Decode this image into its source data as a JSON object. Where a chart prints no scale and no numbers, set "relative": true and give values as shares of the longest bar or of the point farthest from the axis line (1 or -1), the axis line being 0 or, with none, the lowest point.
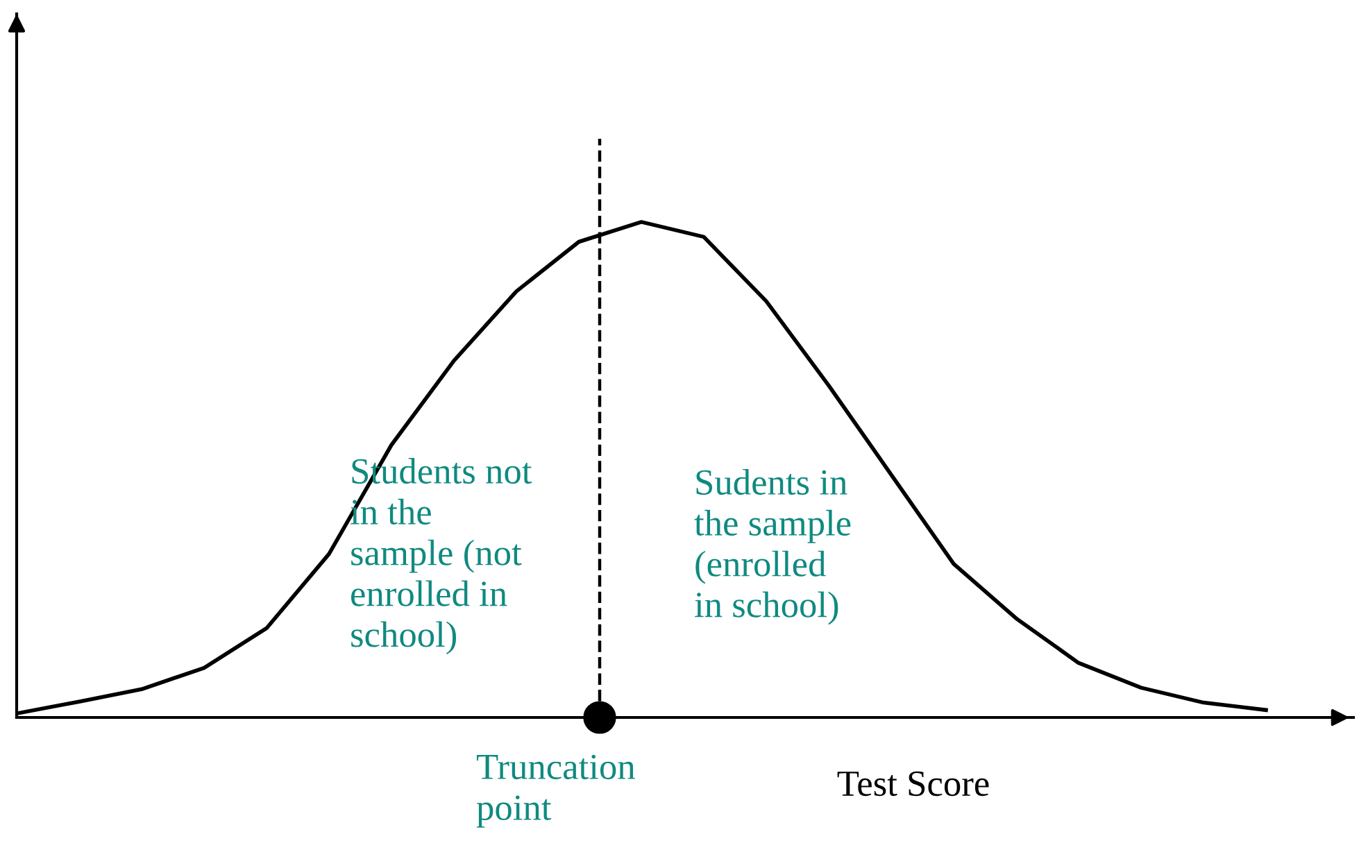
{
  "chart_data": {
    "type": "line",
    "relative": true,
    "xlabel": "Test Score",
    "categories": [
      null,
      null,
      null,
      null,
      null,
      null,
      null,
      null,
      null,
      null,
      null,
      null,
      null,
      null,
      null,
      null,
      null,
      null,
      null,
      null,
      null
    ],
    "series": [
      {
        "color": "#000000",
        "values": [
          0.008,
          0.032,
          0.057,
          0.1,
          0.18,
          0.33,
          0.55,
          0.72,
          0.86,
          0.96,
          1.0,
          0.97,
          0.84,
          0.67,
          0.49,
          0.31,
          0.2,
          0.11,
          0.06,
          0.03,
          0.015
        ]
      }
    ],
    "annotations": [
      "Students not\nin the\nsample (not\nenrolled in\nschool)",
      "Sudents in\nthe sample\n(enrolled\nin school)",
      "Truncation\npoint"
    ],
    "legend": false,
    "marker": "none",
    "line_style": "solid"
  }
}
